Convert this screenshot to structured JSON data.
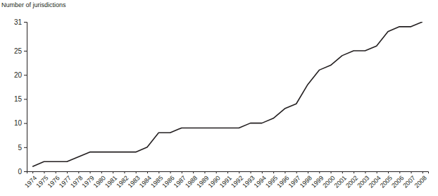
{
  "chart_data": {
    "type": "line",
    "y_label": "Number of jurisdictions",
    "categories": [
      "1974",
      "1975",
      "1976",
      "1977",
      "1978",
      "1979",
      "1980",
      "1981",
      "1982",
      "1983",
      "1984",
      "1985",
      "1986",
      "1987",
      "1988",
      "1989",
      "1990",
      "1991",
      "1992",
      "1993",
      "1994",
      "1995",
      "1996",
      "1997",
      "1998",
      "1999",
      "2000",
      "2001",
      "2002",
      "2003",
      "2004",
      "2005",
      "2006",
      "2007",
      "2008"
    ],
    "values": [
      1,
      2,
      2,
      2,
      3,
      4,
      4,
      4,
      4,
      4,
      5,
      8,
      8,
      9,
      9,
      9,
      9,
      9,
      9,
      10,
      10,
      11,
      13,
      14,
      18,
      21,
      22,
      24,
      25,
      25,
      26,
      29,
      30,
      30,
      31
    ],
    "color": "#231f20",
    "ylim": [
      0,
      31
    ],
    "yticks": [
      0,
      5,
      10,
      15,
      20,
      25,
      31
    ],
    "grid": false
  }
}
